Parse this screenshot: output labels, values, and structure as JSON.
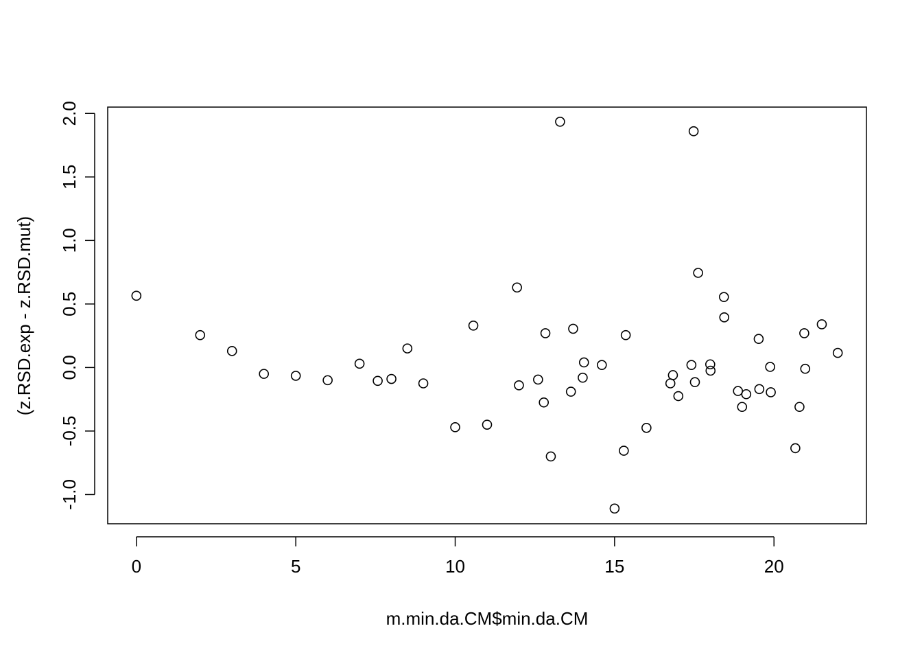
{
  "chart_data": {
    "type": "scatter",
    "title": "",
    "xlabel": "m.min.da.CM$min.da.CM",
    "ylabel": "(z.RSD.exp - z.RSD.mut)",
    "xlim": [
      -0.9,
      22.9
    ],
    "ylim": [
      -1.23,
      2.05
    ],
    "x_ticks": [
      0,
      5,
      10,
      15,
      20
    ],
    "x_tick_labels": [
      "0",
      "5",
      "10",
      "15",
      "20"
    ],
    "y_ticks": [
      -1.0,
      -0.5,
      0.0,
      0.5,
      1.0,
      1.5,
      2.0
    ],
    "y_tick_labels": [
      "-1.0",
      "-0.5",
      "0.0",
      "0.5",
      "1.0",
      "1.5",
      "2.0"
    ],
    "grid": false,
    "legend": "none",
    "marker": "open-circle",
    "marker_color": "#000000",
    "series": [
      {
        "x": [
          0,
          2,
          3,
          4,
          5,
          6,
          7,
          7.57,
          8,
          8.5,
          9,
          10,
          10.57,
          11,
          11.94,
          12,
          12.6,
          12.78,
          12.83,
          13,
          13.29,
          13.63,
          13.7,
          14,
          14.04,
          14.6,
          15,
          15.29,
          15.35,
          16,
          16.75,
          16.83,
          17,
          17.41,
          17.48,
          17.52,
          17.62,
          18,
          18.01,
          18.43,
          18.44,
          18.87,
          19,
          19.13,
          19.52,
          19.54,
          19.88,
          19.9,
          20.67,
          20.8,
          20.95,
          20.98,
          21.5,
          22
        ],
        "y": [
          0.565,
          0.255,
          0.13,
          -0.05,
          -0.065,
          -0.1,
          0.03,
          -0.105,
          -0.09,
          0.15,
          -0.125,
          -0.47,
          0.33,
          -0.45,
          0.63,
          -0.14,
          -0.095,
          -0.275,
          0.27,
          -0.7,
          1.935,
          -0.19,
          0.305,
          -0.08,
          0.04,
          0.02,
          -1.11,
          -0.655,
          0.255,
          -0.475,
          -0.125,
          -0.06,
          -0.225,
          0.02,
          1.86,
          -0.115,
          0.745,
          0.025,
          -0.025,
          0.555,
          0.395,
          -0.185,
          -0.31,
          -0.21,
          0.225,
          -0.17,
          0.005,
          -0.195,
          -0.635,
          -0.31,
          0.27,
          -0.01,
          0.34,
          0.115
        ]
      }
    ]
  }
}
